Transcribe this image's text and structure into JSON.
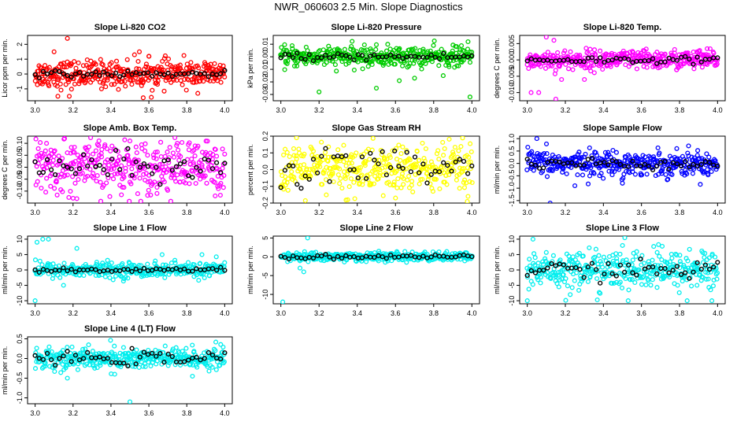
{
  "page": {
    "title": "NWR_060603  2.5 Min. Slope Diagnostics"
  },
  "chart_data": [
    {
      "type": "scatter",
      "title": "Slope Li-820 CO2",
      "ylabel": "Licor ppm per min.",
      "color": "#ff0000",
      "xlim": [
        2.96,
        4.04
      ],
      "xticks": [
        3.0,
        3.2,
        3.4,
        3.6,
        3.8,
        4.0
      ],
      "xtick_labels": [
        "3.0",
        "3.2",
        "3.4",
        "3.6",
        "3.8",
        "4.0"
      ],
      "ylim": [
        -1.8,
        2.6
      ],
      "yticks": [
        -1,
        0,
        1,
        2
      ],
      "ytick_labels": [
        "-1",
        "0",
        "1",
        "2"
      ],
      "spread": 0.45,
      "avg_spread": 0.1,
      "n": 380,
      "outliers": [
        [
          3.17,
          2.4
        ],
        [
          3.18,
          -1.5
        ],
        [
          3.12,
          -1.5
        ],
        [
          3.57,
          -1.6
        ],
        [
          3.55,
          1.5
        ],
        [
          3.1,
          1.5
        ],
        [
          3.6,
          1.2
        ]
      ]
    },
    {
      "type": "scatter",
      "title": "Slope Li-820 Pressure",
      "ylabel": "kPa per min.",
      "color": "#00cc00",
      "xlim": [
        2.96,
        4.04
      ],
      "xticks": [
        3.0,
        3.2,
        3.4,
        3.6,
        3.8,
        4.0
      ],
      "xtick_labels": [
        "3.0",
        "3.2",
        "3.4",
        "3.6",
        "3.8",
        "4.0"
      ],
      "ylim": [
        -0.035,
        0.017
      ],
      "yticks": [
        -0.03,
        -0.02,
        -0.01,
        0.0,
        0.01
      ],
      "ytick_labels": [
        "-0.03",
        "-0.02",
        "-0.01",
        "0.00",
        "0.01"
      ],
      "spread": 0.004,
      "avg_spread": 0.0015,
      "n": 380,
      "outliers": [
        [
          3.2,
          -0.028
        ],
        [
          3.5,
          -0.025
        ],
        [
          3.99,
          -0.032
        ],
        [
          3.7,
          -0.017
        ],
        [
          3.62,
          -0.019
        ],
        [
          3.98,
          0.012
        ],
        [
          3.85,
          -0.015
        ]
      ]
    },
    {
      "type": "scatter",
      "title": "Slope Li-820 Temp.",
      "ylabel": "degrees C per min.",
      "color": "#ff00ff",
      "xlim": [
        2.96,
        4.04
      ],
      "xticks": [
        3.0,
        3.2,
        3.4,
        3.6,
        3.8,
        4.0
      ],
      "xtick_labels": [
        "3.0",
        "3.2",
        "3.4",
        "3.6",
        "3.8",
        "4.0"
      ],
      "ylim": [
        -0.0125,
        0.0075
      ],
      "yticks": [
        -0.01,
        -0.005,
        0.0,
        0.005
      ],
      "ytick_labels": [
        "-0.010",
        "-0.005",
        "0.000",
        "0.005"
      ],
      "spread": 0.0015,
      "avg_spread": 0.0005,
      "n": 380,
      "outliers": [
        [
          3.1,
          0.007
        ],
        [
          3.02,
          -0.01
        ],
        [
          3.06,
          -0.01
        ],
        [
          3.15,
          -0.012
        ],
        [
          3.18,
          -0.006
        ],
        [
          3.14,
          0.006
        ],
        [
          3.3,
          -0.006
        ]
      ]
    },
    {
      "type": "scatter",
      "title": "Slope Amb. Box Temp.",
      "ylabel": "degrees C per min.",
      "color": "#ff00ff",
      "xlim": [
        2.96,
        4.04
      ],
      "xticks": [
        3.0,
        3.2,
        3.4,
        3.6,
        3.8,
        4.0
      ],
      "xtick_labels": [
        "3.0",
        "3.2",
        "3.4",
        "3.6",
        "3.8",
        "4.0"
      ],
      "ylim": [
        -0.15,
        0.13
      ],
      "yticks": [
        -0.1,
        -0.05,
        0.0,
        0.05,
        0.1
      ],
      "ytick_labels": [
        "-0.10",
        "-0.05",
        "0.00",
        "0.05",
        "0.10"
      ],
      "spread": 0.055,
      "avg_spread": 0.03,
      "n": 380,
      "outliers": [
        [
          3.2,
          -0.13
        ],
        [
          3.06,
          0.1
        ],
        [
          3.5,
          0.11
        ],
        [
          3.75,
          0.1
        ],
        [
          3.95,
          -0.12
        ]
      ]
    },
    {
      "type": "scatter",
      "title": "Slope Gas Stream RH",
      "ylabel": "percent per min.",
      "color": "#ffff00",
      "xlim": [
        2.96,
        4.04
      ],
      "xticks": [
        3.0,
        3.2,
        3.4,
        3.6,
        3.8,
        4.0
      ],
      "xtick_labels": [
        "3.0",
        "3.2",
        "3.4",
        "3.6",
        "3.8",
        "4.0"
      ],
      "ylim": [
        -0.2,
        0.2
      ],
      "yticks": [
        -0.2,
        -0.1,
        0.0,
        0.1,
        0.2
      ],
      "ytick_labels": [
        "-0.2",
        "-0.1",
        "0.0",
        "0.1",
        "0.2"
      ],
      "spread": 0.075,
      "avg_spread": 0.06,
      "n": 380,
      "outliers": [
        [
          3.35,
          -0.18
        ],
        [
          3.6,
          -0.17
        ],
        [
          3.98,
          -0.16
        ]
      ]
    },
    {
      "type": "scatter",
      "title": "Slope Sample Flow",
      "ylabel": "ml/min per min.",
      "color": "#0000ff",
      "xlim": [
        2.96,
        4.04
      ],
      "xticks": [
        3.0,
        3.2,
        3.4,
        3.6,
        3.8,
        4.0
      ],
      "xtick_labels": [
        "3.0",
        "3.2",
        "3.4",
        "3.6",
        "3.8",
        "4.0"
      ],
      "ylim": [
        -1.6,
        1.1
      ],
      "yticks": [
        -1.5,
        -1.0,
        -0.5,
        0.0,
        0.5,
        1.0
      ],
      "ytick_labels": [
        "-1.5",
        "-1.0",
        "-0.5",
        "0.0",
        "0.5",
        "1.0"
      ],
      "spread": 0.25,
      "avg_spread": 0.12,
      "n": 380,
      "outliers": [
        [
          3.12,
          -1.6
        ],
        [
          3.05,
          1.0
        ],
        [
          3.25,
          -0.9
        ],
        [
          3.5,
          -0.8
        ]
      ]
    },
    {
      "type": "scatter",
      "title": "Slope Line 1 Flow",
      "ylabel": "ml/min per min.",
      "color": "#00eeee",
      "xlim": [
        2.96,
        4.04
      ],
      "xticks": [
        3.0,
        3.2,
        3.4,
        3.6,
        3.8,
        4.0
      ],
      "xtick_labels": [
        "3.0",
        "3.2",
        "3.4",
        "3.6",
        "3.8",
        "4.0"
      ],
      "ylim": [
        -11,
        11
      ],
      "yticks": [
        -10,
        -5,
        0,
        5,
        10
      ],
      "ytick_labels": [
        "-10",
        "-5",
        "0",
        "5",
        "10"
      ],
      "spread": 1.2,
      "avg_spread": 0.3,
      "n": 360,
      "outliers": [
        [
          3.0,
          -10
        ],
        [
          3.04,
          10
        ],
        [
          3.07,
          10
        ],
        [
          3.01,
          9
        ],
        [
          3.15,
          -5
        ],
        [
          3.22,
          7
        ],
        [
          3.67,
          5
        ],
        [
          3.88,
          5
        ]
      ]
    },
    {
      "type": "scatter",
      "title": "Slope Line 2 Flow",
      "ylabel": "ml/min per min.",
      "color": "#00eeee",
      "xlim": [
        2.96,
        4.04
      ],
      "xticks": [
        3.0,
        3.2,
        3.4,
        3.6,
        3.8,
        4.0
      ],
      "xtick_labels": [
        "3.0",
        "3.2",
        "3.4",
        "3.6",
        "3.8",
        "4.0"
      ],
      "ylim": [
        -12.5,
        5.5
      ],
      "yticks": [
        -10,
        -5,
        0,
        5
      ],
      "ytick_labels": [
        "-10",
        "-5",
        "0",
        "5"
      ],
      "spread": 0.6,
      "avg_spread": 0.3,
      "n": 360,
      "outliers": [
        [
          3.01,
          -12
        ],
        [
          3.14,
          5
        ],
        [
          3.1,
          -3
        ],
        [
          3.12,
          -4
        ]
      ]
    },
    {
      "type": "scatter",
      "title": "Slope Line 3 Flow",
      "ylabel": "ml/min per min.",
      "color": "#00eeee",
      "xlim": [
        2.96,
        4.04
      ],
      "xticks": [
        3.0,
        3.2,
        3.4,
        3.6,
        3.8,
        4.0
      ],
      "xtick_labels": [
        "3.0",
        "3.2",
        "3.4",
        "3.6",
        "3.8",
        "4.0"
      ],
      "ylim": [
        -11,
        11
      ],
      "yticks": [
        -10,
        -5,
        0,
        5,
        10
      ],
      "ytick_labels": [
        "-10",
        "-5",
        "0",
        "5",
        "10"
      ],
      "spread": 3.2,
      "avg_spread": 1.5,
      "n": 380,
      "outliers": [
        [
          3.03,
          10
        ],
        [
          3.0,
          -10
        ],
        [
          3.97,
          -10
        ],
        [
          3.53,
          -10
        ]
      ]
    },
    {
      "type": "scatter",
      "title": "Slope Line 4 (LT) Flow",
      "ylabel": "ml/min per min.",
      "color": "#00eeee",
      "xlim": [
        2.96,
        4.04
      ],
      "xticks": [
        3.0,
        3.2,
        3.4,
        3.6,
        3.8,
        4.0
      ],
      "xtick_labels": [
        "3.0",
        "3.2",
        "3.4",
        "3.6",
        "3.8",
        "4.0"
      ],
      "ylim": [
        -1.15,
        0.55
      ],
      "yticks": [
        -1.0,
        -0.5,
        0.0,
        0.5
      ],
      "ytick_labels": [
        "-1.0",
        "-0.5",
        "0.0",
        "0.5"
      ],
      "spread": 0.14,
      "avg_spread": 0.08,
      "n": 380,
      "outliers": [
        [
          3.5,
          -1.1
        ],
        [
          3.17,
          -0.5
        ],
        [
          3.83,
          -0.45
        ],
        [
          3.42,
          -0.4
        ]
      ]
    }
  ]
}
